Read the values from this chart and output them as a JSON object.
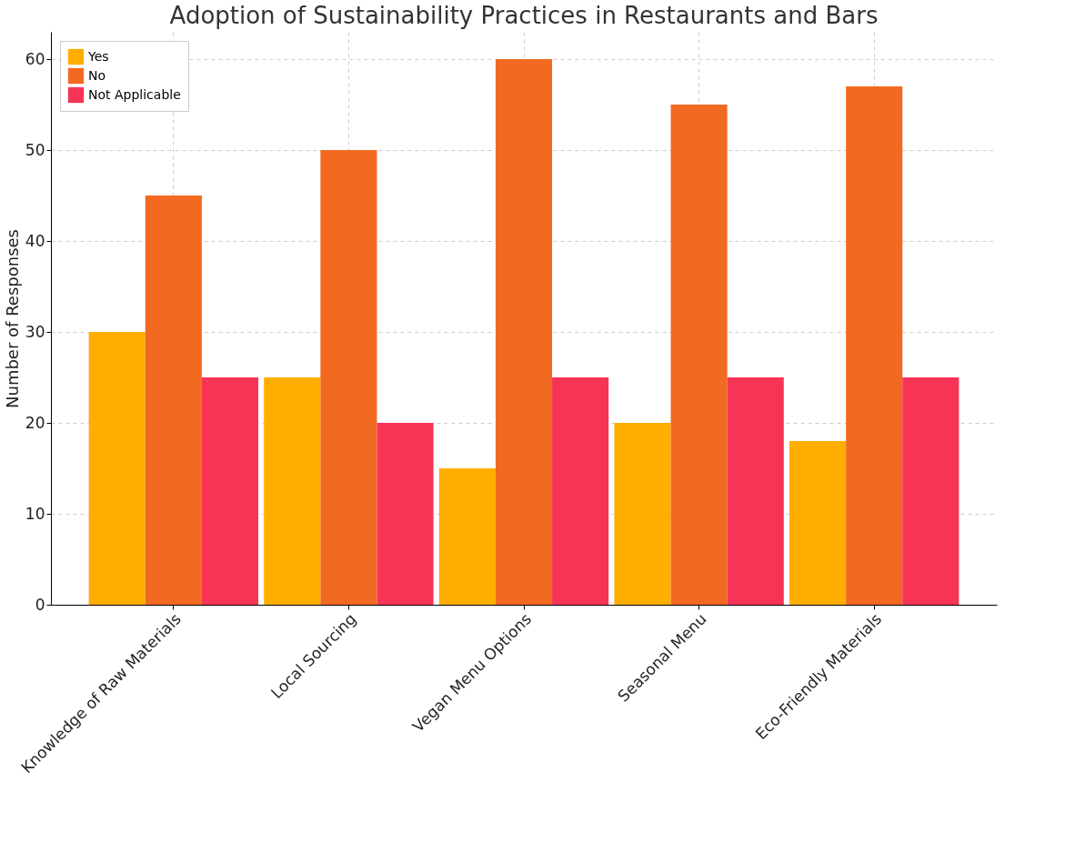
{
  "chart_data": {
    "type": "bar",
    "title": "Adoption of Sustainability Practices in Restaurants and Bars",
    "ylabel": "Number of Responses",
    "categories": [
      "Knowledge of Raw Materials",
      "Local Sourcing",
      "Vegan Menu Options",
      "Seasonal Menu",
      "Eco-Friendly Materials"
    ],
    "series": [
      {
        "name": "Yes",
        "color": "#ffae00",
        "values": [
          30,
          25,
          15,
          20,
          18
        ]
      },
      {
        "name": "No",
        "color": "#f26a21",
        "values": [
          45,
          50,
          60,
          55,
          57
        ]
      },
      {
        "name": "Not Applicable",
        "color": "#f73356",
        "values": [
          25,
          20,
          25,
          25,
          25
        ]
      }
    ],
    "ylim": [
      0,
      63
    ],
    "yticks": [
      0,
      10,
      20,
      30,
      40,
      50,
      60
    ],
    "grid": true,
    "legend": "top left"
  }
}
